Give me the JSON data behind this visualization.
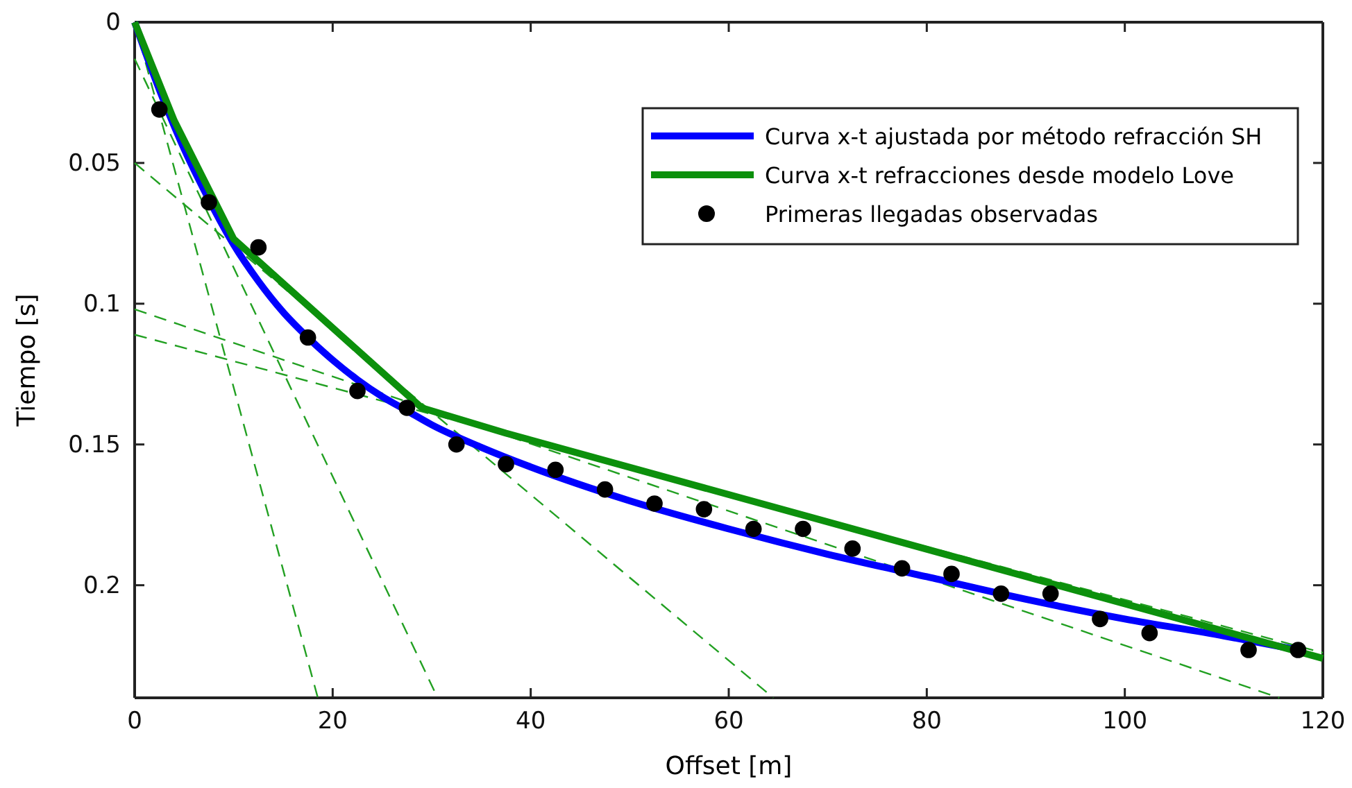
{
  "chart_data": {
    "type": "line",
    "xlabel": "Offset [m]",
    "ylabel": "Tiempo [s]",
    "xlim": [
      0,
      120
    ],
    "xticks": [
      0,
      20,
      40,
      60,
      80,
      100,
      120
    ],
    "ylim": [
      0.24,
      0
    ],
    "yticks": [
      0,
      0.05,
      0.1,
      0.15,
      0.2
    ],
    "grid": false,
    "legend": "top right",
    "series": [
      {
        "line_style": "dashed",
        "color": "#22a022",
        "x": [
          0,
          18.5
        ],
        "values": [
          0,
          0.24
        ]
      },
      {
        "line_style": "dashed",
        "color": "#22a022",
        "x": [
          0,
          30.6
        ],
        "values": [
          0.013,
          0.24
        ]
      },
      {
        "line_style": "dashed",
        "color": "#22a022",
        "x": [
          0,
          64.5
        ],
        "values": [
          0.05,
          0.24
        ]
      },
      {
        "line_style": "dashed",
        "color": "#22a022",
        "x": [
          0,
          115.6
        ],
        "values": [
          0.102,
          0.24
        ]
      },
      {
        "line_style": "dashed",
        "color": "#22a022",
        "x": [
          0,
          120
        ],
        "values": [
          0.111,
          0.224
        ]
      },
      {
        "name": "Curva x-t ajustada por método refracción SH",
        "color": "#0000ff",
        "x": [
          0,
          2.5,
          5,
          7.5,
          10,
          12.5,
          15,
          17.5,
          20,
          22.5,
          25,
          27.5,
          30,
          35,
          40,
          50,
          60,
          70,
          80,
          90,
          100,
          110,
          117.5
        ],
        "values": [
          0,
          0.024,
          0.045,
          0.063,
          0.079,
          0.092,
          0.103,
          0.112,
          0.12,
          0.127,
          0.133,
          0.138,
          0.143,
          0.151,
          0.158,
          0.17,
          0.18,
          0.189,
          0.197,
          0.205,
          0.212,
          0.218,
          0.223
        ]
      },
      {
        "name": "Curva x-t refracciones desde modelo Love",
        "color": "#0c900c",
        "x": [
          0,
          4,
          10,
          29,
          37.5,
          120
        ],
        "values": [
          0,
          0.035,
          0.077,
          0.137,
          0.146,
          0.226
        ]
      },
      {
        "type": "scatter",
        "marker": "circle",
        "name": "Primeras llegadas observadas",
        "color": "#000000",
        "x": [
          2.5,
          7.5,
          12.5,
          17.5,
          22.5,
          27.5,
          32.5,
          37.5,
          42.5,
          47.5,
          52.5,
          57.5,
          62.5,
          67.5,
          72.5,
          77.5,
          82.5,
          87.5,
          92.5,
          97.5,
          102.5,
          112.5,
          117.5
        ],
        "values": [
          0.031,
          0.064,
          0.08,
          0.112,
          0.131,
          0.137,
          0.15,
          0.157,
          0.159,
          0.166,
          0.171,
          0.173,
          0.18,
          0.18,
          0.187,
          0.194,
          0.196,
          0.203,
          0.203,
          0.212,
          0.217,
          0.223,
          0.223
        ]
      }
    ]
  }
}
